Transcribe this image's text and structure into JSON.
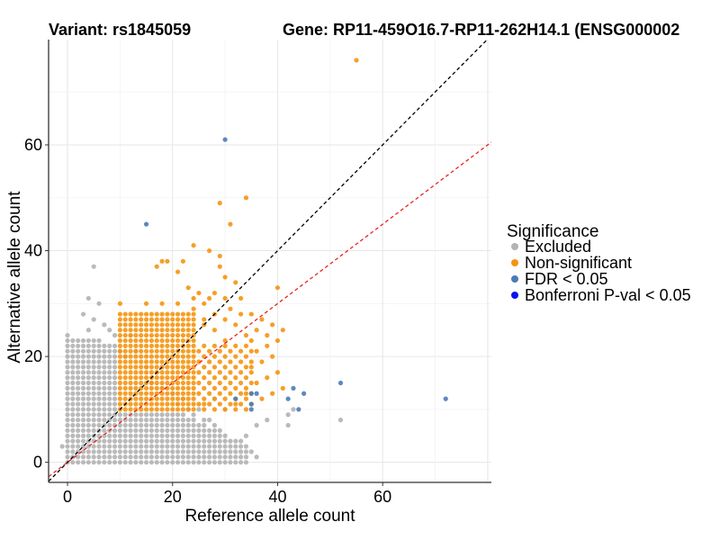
{
  "chart_data": {
    "type": "scatter",
    "title_left": "Variant: rs1845059",
    "title_right": "Gene: RP11-459O16.7-RP11-262H14.1 (ENSG000002",
    "xlabel": "Reference allele count",
    "ylabel": "Alternative allele count",
    "xlim": [
      -3.6,
      80.7
    ],
    "ylim": [
      -3.8,
      79.9
    ],
    "x_ticks": [
      0,
      20,
      40,
      60
    ],
    "y_ticks": [
      0,
      20,
      40,
      60
    ],
    "grid": true,
    "legend": {
      "title": "Significance",
      "position": "right",
      "entries": [
        {
          "label": "Excluded",
          "color": "#b3b3b3"
        },
        {
          "label": "Non-significant",
          "color": "#f5950f"
        },
        {
          "label": "FDR < 0.05",
          "color": "#4a7cb8"
        },
        {
          "label": "Bonferroni P-val < 0.05",
          "color": "#0a12f0"
        }
      ]
    },
    "reference_lines": [
      {
        "name": "identity",
        "slope": 1,
        "intercept": 0,
        "color": "#000000",
        "dash": true
      },
      {
        "name": "expected-ratio",
        "slope": 0.75,
        "intercept": 0,
        "color": "#e8251e",
        "dash": true
      }
    ],
    "series": [
      {
        "name": "Excluded",
        "color": "#b3b3b3",
        "grid_region": {
          "x_range": [
            0,
            9
          ],
          "y_range": [
            0,
            24
          ],
          "note": "dense cloud of gray points, mostly low allele counts"
        },
        "points": [
          [
            5,
            37
          ],
          [
            4,
            31
          ],
          [
            6,
            30
          ],
          [
            3,
            28
          ],
          [
            5,
            27
          ],
          [
            7,
            26
          ],
          [
            4,
            25
          ],
          [
            8,
            25
          ],
          [
            9,
            24
          ],
          [
            2,
            22
          ],
          [
            8,
            22
          ],
          [
            6,
            23
          ],
          [
            10,
            21
          ],
          [
            12,
            24
          ],
          [
            11,
            20
          ],
          [
            13,
            21
          ],
          [
            15,
            18
          ],
          [
            17,
            17
          ],
          [
            16,
            15
          ],
          [
            18,
            14
          ],
          [
            20,
            13
          ],
          [
            22,
            12
          ],
          [
            21,
            11
          ],
          [
            23,
            10
          ],
          [
            25,
            10
          ],
          [
            24,
            9
          ],
          [
            26,
            8
          ],
          [
            27,
            8
          ],
          [
            25,
            7
          ],
          [
            28,
            7
          ],
          [
            26,
            6
          ],
          [
            29,
            6
          ],
          [
            27,
            5
          ],
          [
            30,
            5
          ],
          [
            29,
            4
          ],
          [
            31,
            4
          ],
          [
            30,
            3
          ],
          [
            33,
            3
          ],
          [
            32,
            2
          ],
          [
            35,
            2
          ],
          [
            34,
            1
          ],
          [
            36,
            1
          ],
          [
            33,
            0
          ],
          [
            30,
            0
          ],
          [
            28,
            0
          ],
          [
            26,
            1
          ],
          [
            24,
            2
          ],
          [
            22,
            3
          ],
          [
            20,
            4
          ],
          [
            18,
            5
          ],
          [
            16,
            6
          ],
          [
            14,
            7
          ],
          [
            12,
            8
          ],
          [
            10,
            9
          ],
          [
            11,
            2
          ],
          [
            13,
            4
          ],
          [
            15,
            3
          ],
          [
            17,
            2
          ],
          [
            19,
            1
          ],
          [
            21,
            0
          ],
          [
            23,
            0
          ],
          [
            0,
            14
          ],
          [
            1,
            12
          ],
          [
            2,
            9
          ],
          [
            0,
            8
          ],
          [
            1,
            6
          ],
          [
            -1,
            3
          ],
          [
            0,
            0
          ],
          [
            1,
            1
          ],
          [
            0,
            2
          ],
          [
            3,
            0
          ],
          [
            5,
            0
          ],
          [
            7,
            0
          ],
          [
            9,
            0
          ],
          [
            14,
            0
          ],
          [
            16,
            0
          ],
          [
            18,
            0
          ],
          [
            42,
            9
          ],
          [
            42,
            7
          ],
          [
            52,
            8
          ],
          [
            28,
            12
          ],
          [
            30,
            10
          ],
          [
            34,
            5
          ],
          [
            36,
            7
          ],
          [
            38,
            8
          ],
          [
            43,
            10
          ]
        ]
      },
      {
        "name": "Non-significant",
        "color": "#f5950f",
        "grid_region": {
          "x_range": [
            10,
            24
          ],
          "y_range": [
            10,
            28
          ],
          "note": "dense cloud of orange points"
        },
        "points": [
          [
            55,
            76
          ],
          [
            34,
            50
          ],
          [
            29,
            49
          ],
          [
            31,
            45
          ],
          [
            24,
            41
          ],
          [
            27,
            40
          ],
          [
            29,
            39
          ],
          [
            18,
            38
          ],
          [
            19,
            38
          ],
          [
            17,
            37
          ],
          [
            22,
            38
          ],
          [
            21,
            36
          ],
          [
            29,
            37
          ],
          [
            30,
            35
          ],
          [
            32,
            34
          ],
          [
            40,
            33
          ],
          [
            23,
            33
          ],
          [
            25,
            32
          ],
          [
            28,
            32
          ],
          [
            24,
            31
          ],
          [
            26,
            30
          ],
          [
            27,
            31
          ],
          [
            30,
            31
          ],
          [
            33,
            31
          ],
          [
            10,
            30
          ],
          [
            15,
            30
          ],
          [
            18,
            30
          ],
          [
            21,
            30
          ],
          [
            31,
            29
          ],
          [
            33,
            28
          ],
          [
            35,
            28
          ],
          [
            37,
            27
          ],
          [
            39,
            26
          ],
          [
            41,
            25
          ],
          [
            40,
            23
          ],
          [
            38,
            22
          ],
          [
            36,
            21
          ],
          [
            39,
            20
          ],
          [
            37,
            19
          ],
          [
            35,
            18
          ],
          [
            40,
            17
          ],
          [
            38,
            16
          ],
          [
            36,
            15
          ],
          [
            41,
            14
          ],
          [
            39,
            13
          ],
          [
            37,
            12
          ],
          [
            34,
            13
          ],
          [
            32,
            11
          ],
          [
            30,
            12
          ],
          [
            28,
            10
          ],
          [
            26,
            11
          ],
          [
            25,
            13
          ],
          [
            27,
            15
          ],
          [
            29,
            17
          ],
          [
            31,
            19
          ],
          [
            33,
            21
          ],
          [
            30,
            23
          ],
          [
            28,
            25
          ],
          [
            26,
            27
          ],
          [
            24,
            29
          ],
          [
            28,
            28
          ],
          [
            26,
            26
          ],
          [
            34,
            24
          ],
          [
            32,
            26
          ],
          [
            30,
            27
          ],
          [
            36,
            25
          ],
          [
            38,
            24
          ],
          [
            34,
            22
          ],
          [
            32,
            20
          ],
          [
            35,
            23
          ]
        ]
      },
      {
        "name": "FDR < 0.05",
        "color": "#4a7cb8",
        "points": [
          [
            30,
            61
          ],
          [
            15,
            45
          ],
          [
            72,
            12
          ],
          [
            52,
            15
          ],
          [
            45,
            13
          ],
          [
            43,
            14
          ],
          [
            42,
            12
          ],
          [
            44,
            10
          ],
          [
            35,
            13
          ],
          [
            36,
            13
          ],
          [
            35,
            11
          ],
          [
            35,
            10
          ],
          [
            32,
            12
          ]
        ]
      },
      {
        "name": "Bonferroni P-val < 0.05",
        "color": "#0a12f0",
        "points": []
      }
    ]
  }
}
